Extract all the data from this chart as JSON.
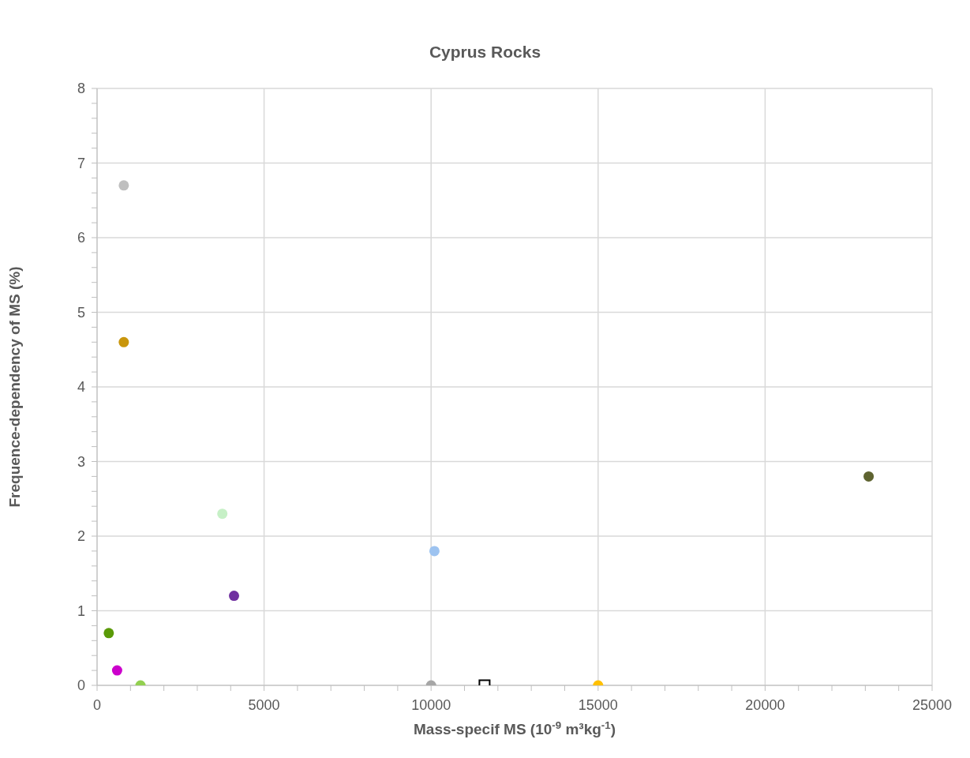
{
  "chart_data": {
    "type": "scatter",
    "title": "Cyprus Rocks",
    "xlabel": "Mass-specif MS (10$^{-9}$ m³kg$^{-1}$)",
    "ylabel": "Frequence-dependency of MS (%)",
    "xlim": [
      0,
      25000
    ],
    "ylim": [
      0,
      8
    ],
    "xticks": [
      0,
      {
        "value": 1000,
        "label": null
      },
      {
        "value": 2000,
        "label": null
      },
      {
        "value": 3000,
        "label": null
      },
      {
        "value": 4000,
        "label": null
      },
      5000,
      {
        "value": 6000,
        "label": null
      },
      {
        "value": 7000,
        "label": null
      },
      {
        "value": 8000,
        "label": null
      },
      {
        "value": 9000,
        "label": null
      },
      10000,
      {
        "value": 11000,
        "label": null
      },
      {
        "value": 12000,
        "label": null
      },
      {
        "value": 13000,
        "label": null
      },
      {
        "value": 14000,
        "label": null
      },
      15000,
      {
        "value": 16000,
        "label": null
      },
      {
        "value": 17000,
        "label": null
      },
      {
        "value": 18000,
        "label": null
      },
      {
        "value": 19000,
        "label": null
      },
      20000,
      {
        "value": 21000,
        "label": null
      },
      {
        "value": 22000,
        "label": null
      },
      {
        "value": 23000,
        "label": null
      },
      {
        "value": 24000,
        "label": null
      },
      25000
    ],
    "yticks": [
      0,
      {
        "value": 0.2,
        "label": null
      },
      {
        "value": 0.4,
        "label": null
      },
      {
        "value": 0.6,
        "label": null
      },
      {
        "value": 0.8,
        "label": null
      },
      1,
      {
        "value": 1.2,
        "label": null
      },
      {
        "value": 1.4,
        "label": null
      },
      {
        "value": 1.6,
        "label": null
      },
      {
        "value": 1.8,
        "label": null
      },
      2,
      {
        "value": 2.2,
        "label": null
      },
      {
        "value": 2.4,
        "label": null
      },
      {
        "value": 2.6,
        "label": null
      },
      {
        "value": 2.8,
        "label": null
      },
      3,
      {
        "value": 3.2,
        "label": null
      },
      {
        "value": 3.4,
        "label": null
      },
      {
        "value": 3.6,
        "label": null
      },
      {
        "value": 3.8,
        "label": null
      },
      4,
      {
        "value": 4.2,
        "label": null
      },
      {
        "value": 4.4,
        "label": null
      },
      {
        "value": 4.6,
        "label": null
      },
      {
        "value": 4.8,
        "label": null
      },
      5,
      {
        "value": 5.2,
        "label": null
      },
      {
        "value": 5.4,
        "label": null
      },
      {
        "value": 5.6,
        "label": null
      },
      {
        "value": 5.8,
        "label": null
      },
      6,
      {
        "value": 6.2,
        "label": null
      },
      {
        "value": 6.4,
        "label": null
      },
      {
        "value": 6.6,
        "label": null
      },
      {
        "value": 6.8,
        "label": null
      },
      7,
      {
        "value": 7.2,
        "label": null
      },
      {
        "value": 7.4,
        "label": null
      },
      {
        "value": 7.6,
        "label": null
      },
      {
        "value": 7.8,
        "label": null
      },
      8
    ],
    "grid": true,
    "legend": false,
    "marker": "circle",
    "series": [
      {
        "color": "#bfbfbf",
        "x": [
          800
        ],
        "values": [
          6.7
        ]
      },
      {
        "color": "#c9960c",
        "x": [
          800
        ],
        "values": [
          4.6
        ]
      },
      {
        "color": "#c6f0c6",
        "x": [
          3750
        ],
        "values": [
          2.3
        ]
      },
      {
        "color": "#7030a0",
        "x": [
          4100
        ],
        "values": [
          1.2
        ]
      },
      {
        "color": "#9dc3f0",
        "x": [
          10100
        ],
        "values": [
          1.8
        ]
      },
      {
        "color": "#5e6330",
        "x": [
          23100
        ],
        "values": [
          2.8
        ]
      },
      {
        "color": "#5a9a08",
        "x": [
          350
        ],
        "values": [
          0.7
        ]
      },
      {
        "color": "#cc00cc",
        "x": [
          600
        ],
        "values": [
          0.2
        ]
      },
      {
        "color": "#92d050",
        "x": [
          1300
        ],
        "values": [
          0
        ]
      },
      {
        "color": "#a6a6a6",
        "x": [
          10000
        ],
        "values": [
          0
        ]
      },
      {
        "color": "#000000",
        "x": [
          11600
        ],
        "values": [
          0
        ],
        "marker": "square"
      },
      {
        "color": "#ffc000",
        "x": [
          15000
        ],
        "values": [
          0
        ]
      }
    ]
  }
}
